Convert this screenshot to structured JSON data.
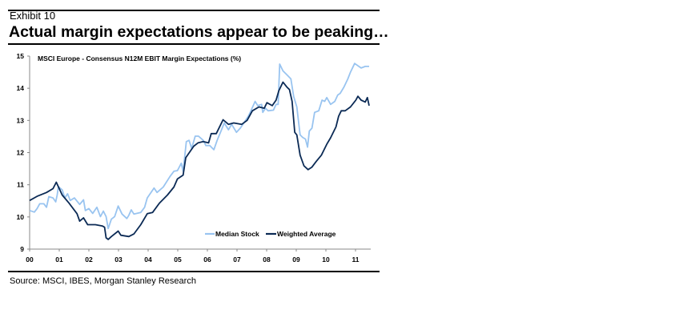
{
  "header": {
    "exhibit": "Exhibit 10",
    "title": "Actual margin expectations appear to be peaking…"
  },
  "footer": {
    "source": "Source: MSCI, IBES, Morgan Stanley Research"
  },
  "colors": {
    "median": "#99c4f0",
    "weighted": "#0b2a55"
  },
  "chart_data": {
    "type": "line",
    "title": "MSCI Europe - Consensus N12M EBIT Margin Expectations (%)",
    "xlabel": "",
    "ylabel": "",
    "ylim": [
      9,
      15
    ],
    "xlim": [
      2000,
      2011.7
    ],
    "yticks": [
      "9",
      "10",
      "11",
      "12",
      "13",
      "14",
      "15"
    ],
    "xticks": [
      "00",
      "01",
      "02",
      "03",
      "04",
      "05",
      "06",
      "07",
      "08",
      "09",
      "10",
      "11"
    ],
    "legend": {
      "position": "bottom-right",
      "entries": [
        "Median Stock",
        "Weighted Average"
      ]
    },
    "series": [
      {
        "name": "Median Stock",
        "points": [
          [
            0,
            10.2
          ],
          [
            0.16,
            10.15
          ],
          [
            0.25,
            10.26
          ],
          [
            0.34,
            10.41
          ],
          [
            0.48,
            10.41
          ],
          [
            0.57,
            10.3
          ],
          [
            0.65,
            10.63
          ],
          [
            0.79,
            10.59
          ],
          [
            0.88,
            10.47
          ],
          [
            0.93,
            10.68
          ],
          [
            0.97,
            10.94
          ],
          [
            1.1,
            10.84
          ],
          [
            1.19,
            10.59
          ],
          [
            1.28,
            10.72
          ],
          [
            1.37,
            10.51
          ],
          [
            1.51,
            10.59
          ],
          [
            1.69,
            10.39
          ],
          [
            1.82,
            10.53
          ],
          [
            1.88,
            10.2
          ],
          [
            2.0,
            10.26
          ],
          [
            2.13,
            10.11
          ],
          [
            2.27,
            10.3
          ],
          [
            2.39,
            10.01
          ],
          [
            2.49,
            10.18
          ],
          [
            2.58,
            10.01
          ],
          [
            2.65,
            9.64
          ],
          [
            2.76,
            9.93
          ],
          [
            2.87,
            10.01
          ],
          [
            2.99,
            10.34
          ],
          [
            3.12,
            10.09
          ],
          [
            3.28,
            9.95
          ],
          [
            3.35,
            10.05
          ],
          [
            3.43,
            10.22
          ],
          [
            3.52,
            10.09
          ],
          [
            3.75,
            10.14
          ],
          [
            3.88,
            10.3
          ],
          [
            3.97,
            10.59
          ],
          [
            4.2,
            10.9
          ],
          [
            4.3,
            10.76
          ],
          [
            4.51,
            10.93
          ],
          [
            4.74,
            11.26
          ],
          [
            4.87,
            11.42
          ],
          [
            4.99,
            11.44
          ],
          [
            5.12,
            11.67
          ],
          [
            5.18,
            11.42
          ],
          [
            5.29,
            12.34
          ],
          [
            5.38,
            12.38
          ],
          [
            5.47,
            12.13
          ],
          [
            5.59,
            12.51
          ],
          [
            5.7,
            12.51
          ],
          [
            5.86,
            12.38
          ],
          [
            5.95,
            12.22
          ],
          [
            6.08,
            12.22
          ],
          [
            6.22,
            12.09
          ],
          [
            6.33,
            12.38
          ],
          [
            6.46,
            12.67
          ],
          [
            6.57,
            12.92
          ],
          [
            6.71,
            12.71
          ],
          [
            6.82,
            12.88
          ],
          [
            6.98,
            12.63
          ],
          [
            7.11,
            12.76
          ],
          [
            7.26,
            12.96
          ],
          [
            7.38,
            13.13
          ],
          [
            7.47,
            13.3
          ],
          [
            7.61,
            13.59
          ],
          [
            7.7,
            13.46
          ],
          [
            7.83,
            13.5
          ],
          [
            7.87,
            13.25
          ],
          [
            7.96,
            13.38
          ],
          [
            8.05,
            13.3
          ],
          [
            8.23,
            13.32
          ],
          [
            8.32,
            13.5
          ],
          [
            8.39,
            13.5
          ],
          [
            8.44,
            14.75
          ],
          [
            8.55,
            14.54
          ],
          [
            8.68,
            14.42
          ],
          [
            8.82,
            14.29
          ],
          [
            8.91,
            13.75
          ],
          [
            9.02,
            13.42
          ],
          [
            9.13,
            12.55
          ],
          [
            9.22,
            12.47
          ],
          [
            9.31,
            12.42
          ],
          [
            9.38,
            12.17
          ],
          [
            9.44,
            12.67
          ],
          [
            9.53,
            12.76
          ],
          [
            9.62,
            13.25
          ],
          [
            9.76,
            13.3
          ],
          [
            9.87,
            13.63
          ],
          [
            9.96,
            13.59
          ],
          [
            10.03,
            13.71
          ],
          [
            10.16,
            13.5
          ],
          [
            10.3,
            13.59
          ],
          [
            10.4,
            13.79
          ],
          [
            10.48,
            13.84
          ],
          [
            10.61,
            14.04
          ],
          [
            10.74,
            14.29
          ],
          [
            10.83,
            14.5
          ],
          [
            10.97,
            14.77
          ],
          [
            11.19,
            14.63
          ],
          [
            11.33,
            14.68
          ],
          [
            11.46,
            14.68
          ]
        ]
      },
      {
        "name": "Weighted Average",
        "points": [
          [
            0,
            10.51
          ],
          [
            0.25,
            10.64
          ],
          [
            0.57,
            10.76
          ],
          [
            0.79,
            10.88
          ],
          [
            0.9,
            11.08
          ],
          [
            1.1,
            10.68
          ],
          [
            1.33,
            10.43
          ],
          [
            1.6,
            10.1
          ],
          [
            1.69,
            9.87
          ],
          [
            1.82,
            9.97
          ],
          [
            1.96,
            9.76
          ],
          [
            2.22,
            9.76
          ],
          [
            2.45,
            9.72
          ],
          [
            2.53,
            9.68
          ],
          [
            2.58,
            9.35
          ],
          [
            2.65,
            9.3
          ],
          [
            2.76,
            9.39
          ],
          [
            2.99,
            9.56
          ],
          [
            3.08,
            9.43
          ],
          [
            3.35,
            9.39
          ],
          [
            3.52,
            9.47
          ],
          [
            3.75,
            9.76
          ],
          [
            3.97,
            10.1
          ],
          [
            4.15,
            10.14
          ],
          [
            4.38,
            10.43
          ],
          [
            4.65,
            10.68
          ],
          [
            4.87,
            10.93
          ],
          [
            4.99,
            11.18
          ],
          [
            5.18,
            11.3
          ],
          [
            5.27,
            11.84
          ],
          [
            5.36,
            11.96
          ],
          [
            5.54,
            12.2
          ],
          [
            5.68,
            12.3
          ],
          [
            5.86,
            12.34
          ],
          [
            6.04,
            12.3
          ],
          [
            6.13,
            12.59
          ],
          [
            6.3,
            12.59
          ],
          [
            6.53,
            13.02
          ],
          [
            6.71,
            12.88
          ],
          [
            6.89,
            12.92
          ],
          [
            7.16,
            12.88
          ],
          [
            7.34,
            13.0
          ],
          [
            7.52,
            13.3
          ],
          [
            7.74,
            13.42
          ],
          [
            7.92,
            13.38
          ],
          [
            8.01,
            13.55
          ],
          [
            8.19,
            13.46
          ],
          [
            8.32,
            13.63
          ],
          [
            8.41,
            13.92
          ],
          [
            8.55,
            14.19
          ],
          [
            8.68,
            14.04
          ],
          [
            8.77,
            13.96
          ],
          [
            8.86,
            13.59
          ],
          [
            8.95,
            12.63
          ],
          [
            9.02,
            12.55
          ],
          [
            9.13,
            11.92
          ],
          [
            9.26,
            11.59
          ],
          [
            9.4,
            11.47
          ],
          [
            9.53,
            11.55
          ],
          [
            9.67,
            11.72
          ],
          [
            9.85,
            11.92
          ],
          [
            10.03,
            12.26
          ],
          [
            10.16,
            12.46
          ],
          [
            10.34,
            12.8
          ],
          [
            10.43,
            13.13
          ],
          [
            10.52,
            13.3
          ],
          [
            10.65,
            13.3
          ],
          [
            10.83,
            13.42
          ],
          [
            11.01,
            13.63
          ],
          [
            11.08,
            13.75
          ],
          [
            11.19,
            13.63
          ],
          [
            11.33,
            13.57
          ],
          [
            11.4,
            13.71
          ],
          [
            11.46,
            13.46
          ]
        ]
      }
    ]
  }
}
